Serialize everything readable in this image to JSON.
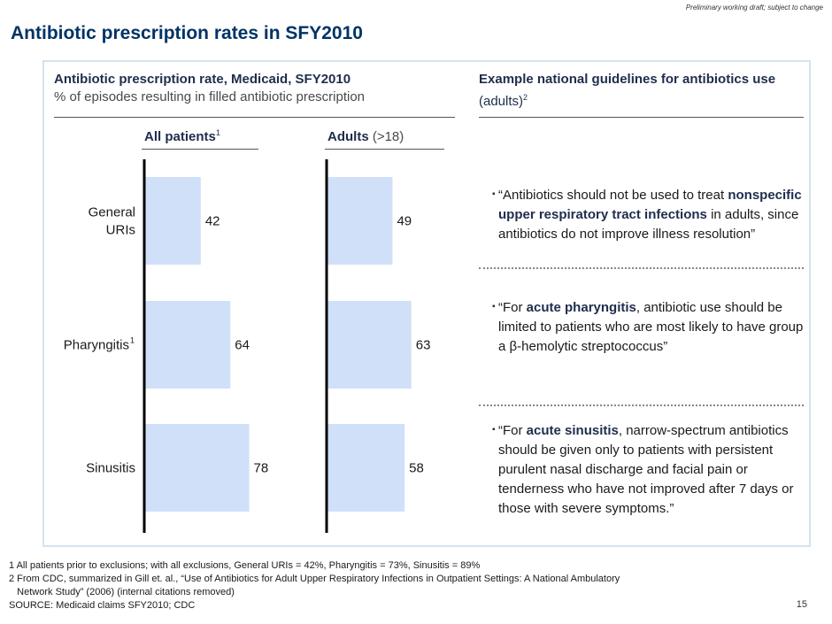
{
  "header": {
    "draft_note": "Preliminary working draft; subject to change",
    "title": "Antibiotic prescription rates in SFY2010"
  },
  "chart_data": {
    "type": "bar",
    "orientation": "horizontal",
    "title": "Antibiotic prescription rate, Medicaid, SFY2010",
    "subtitle": "% of episodes resulting in filled antibiotic prescription",
    "categories": [
      "General URIs",
      "Pharyngitis",
      "Sinusitis"
    ],
    "category_display": [
      {
        "lines": [
          "General",
          "URIs"
        ],
        "sup": ""
      },
      {
        "lines": [
          "Pharyngitis"
        ],
        "sup": "1"
      },
      {
        "lines": [
          "Sinusitis"
        ],
        "sup": ""
      }
    ],
    "series": [
      {
        "name": "All patients",
        "name_bold": "All patients",
        "name_rest": "",
        "name_sup": "1",
        "values": [
          42,
          64,
          78
        ]
      },
      {
        "name": "Adults (>18)",
        "name_bold": "Adults",
        "name_rest": " (>18)",
        "name_sup": "",
        "values": [
          49,
          63,
          58
        ]
      }
    ],
    "bar_color": "#cfe0f8",
    "axis_color": "#000000",
    "xlim": [
      0,
      100
    ]
  },
  "guidelines": {
    "title_bold": "Example national guidelines for antibiotics use",
    "title_rest": " (adults)",
    "title_sup": "2",
    "items": [
      {
        "parts": [
          "“Antibiotics should not be used to treat ",
          "nonspecific upper respiratory tract infections",
          " in adults, since antibiotics do not improve illness resolution”"
        ]
      },
      {
        "parts": [
          "“For ",
          "acute pharyngitis",
          ", antibiotic use should be limited to patients who are most likely to have group a β-hemolytic streptococcus”"
        ]
      },
      {
        "parts": [
          "“For ",
          "acute sinusitis",
          ", narrow-spectrum antibiotics should be given only to patients with persistent purulent nasal discharge and facial pain or tenderness who have not improved after 7 days or those with severe symptoms.”"
        ]
      }
    ]
  },
  "footnotes": {
    "note1": "1 All patients prior to exclusions; with all exclusions, General URIs = 42%, Pharyngitis = 73%, Sinusitis = 89%",
    "note2_line1": "2 From CDC, summarized in Gill et. al., “Use of Antibiotics for Adult Upper Respiratory Infections in Outpatient Settings: A National Ambulatory",
    "note2_line2": "   Network Study” (2006) (internal citations removed)",
    "source": "SOURCE: Medicaid claims SFY2010; CDC"
  },
  "page_number": "15",
  "colors": {
    "title": "#003366",
    "frame": "#d2e3ef",
    "highlight": "#1f2d4d"
  }
}
